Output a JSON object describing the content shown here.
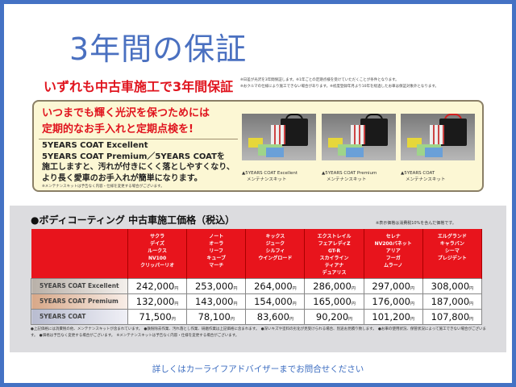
{
  "title": "3年間の保証",
  "headline": "いずれも中古車施工で3年間保証",
  "headline_notes": [
    "※日差が光沢を3年間保証します。※1年ごとの定期点検を受けていただくことが条件となります。",
    "※おクルマの仕様により施工できない場合があります。※初度登録年月より10年を経過したお車は保証対象外となります。"
  ],
  "promo": {
    "red_lines": [
      "いつまでも輝く光沢を保つためには",
      "定期的なお手入れと定期点検を!"
    ],
    "body_lines": [
      "5YEARS COAT Excellent",
      "5YEARS COAT Premium／5YEARS COATを",
      "施工しますと、汚れが付きにくく落としやすくなり、",
      "より長く愛車のお手入れが簡単になります。"
    ],
    "small_note": "※メンテナンスキットは予告なく内容・仕様を変更する場合がございます。",
    "kits": [
      {
        "caption1": "▲5YEARS COAT Excellent",
        "caption2": "メンテナンスキット",
        "handle_color": "#111111"
      },
      {
        "caption1": "▲5YEARS COAT Premium",
        "caption2": "メンテナンスキット",
        "handle_color": "#111111"
      },
      {
        "caption1": "▲5YEARS COAT",
        "caption2": "メンテナンスキット",
        "handle_color": "#d42020"
      }
    ]
  },
  "price_section": {
    "heading": "●ボディコーティング 中古車施工価格（税込）",
    "tax_note": "※表示価格は消費税10%を含んだ価格です。",
    "columns": [
      [
        "サクラ",
        "デイズ",
        "ルークス",
        "NV100",
        "クリッパーリオ"
      ],
      [
        "ノート",
        "オーラ",
        "リーフ",
        "キューブ",
        "マーチ"
      ],
      [
        "キックス",
        "ジューク",
        "シルフィ",
        "ウイングロード"
      ],
      [
        "エクストレイル",
        "フェアレディZ",
        "GT-R",
        "スカイライン",
        "ティアナ",
        "デュアリス"
      ],
      [
        "セレナ",
        "NV200バネット",
        "アリア",
        "フーガ",
        "ムラーノ"
      ],
      [
        "エルグランド",
        "キャラバン",
        "シーマ",
        "プレジデント"
      ]
    ],
    "yen": "円",
    "rows": [
      {
        "label": "5YEARS COAT Excellent",
        "prices": [
          "242,000",
          "253,000",
          "264,000",
          "286,000",
          "297,000",
          "308,000"
        ]
      },
      {
        "label": "5YEARS COAT Premium",
        "prices": [
          "132,000",
          "143,000",
          "154,000",
          "165,000",
          "176,000",
          "187,000"
        ]
      },
      {
        "label": "5YEARS COAT",
        "prices": [
          "71,500",
          "78,100",
          "83,600",
          "90,200",
          "101,200",
          "107,800"
        ]
      }
    ],
    "footnotes": "●上記価格には消費税の他、メンテナンスキットが含まれています。　●鉄粉除去作業、汚れ落とし作業、研磨作業は上記価格に含まれます。　●深いキズや塗料の劣化が見受けられる場合、別途お見積り致します。　●お車の使用状況、保管状況によって施工できない場合がございます。　●価格は予告なく変更する場合がございます。　※メンテナンスキットは予告なく内容・仕様を変更する場合がございます。"
  },
  "bottom_text": "詳しくはカーライフアドバイザーまでお問合せください",
  "colors": {
    "frame": "#4472c4",
    "accent_red": "#e8141c",
    "title_blue": "#4a70c0"
  }
}
